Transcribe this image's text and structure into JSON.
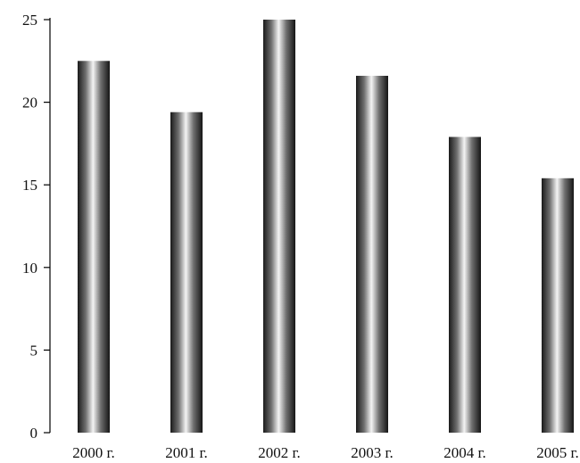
{
  "chart_data": {
    "type": "bar",
    "title": "",
    "xlabel": "",
    "ylabel": "",
    "categories": [
      "2000 г.",
      "2001 г.",
      "2002 г.",
      "2003 г.",
      "2004 г.",
      "2005 г."
    ],
    "values": [
      22.5,
      19.4,
      25.0,
      21.6,
      17.9,
      15.4
    ],
    "ylim": [
      0,
      25
    ],
    "yticks": [
      0,
      5,
      10,
      15,
      20,
      25
    ],
    "grid": false,
    "legend": "none",
    "bar_style": "metallic cylinder gradient (dark edges, light center)",
    "colors": {
      "bar_dark": "#1a1a1a",
      "bar_mid": "#7a7a7a",
      "bar_light": "#f2f2f2",
      "axis": "#000000"
    }
  }
}
